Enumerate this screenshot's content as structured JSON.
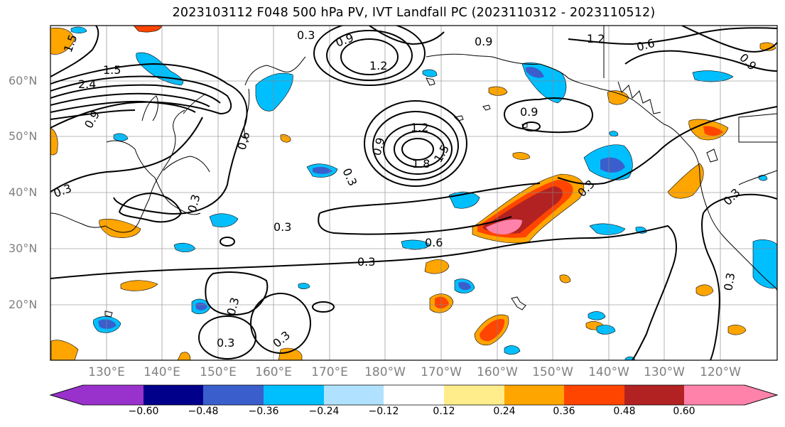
{
  "title": "2023103112 F048 500 hPa PV, IVT Landfall PC (2023110312 - 2023110512)",
  "lat_labels": [
    "60°N",
    "50°N",
    "40°N",
    "30°N",
    "20°N"
  ],
  "lon_labels": [
    "130°E",
    "140°E",
    "150°E",
    "160°E",
    "170°E",
    "180°W",
    "170°W",
    "160°W",
    "150°W",
    "140°W",
    "130°W",
    "120°W"
  ],
  "contour_labels": [
    "0.3",
    "0.6",
    "0.9",
    "1.2",
    "1.5",
    "1.8",
    "2.4"
  ],
  "colorbar": {
    "ticks": [
      "−0.60",
      "−0.48",
      "−0.36",
      "−0.24",
      "−0.12",
      "0.12",
      "0.24",
      "0.36",
      "0.48",
      "0.60"
    ],
    "colors": [
      "#9932cc",
      "#00008b",
      "#3a5fcd",
      "#00bfff",
      "#b0e2ff",
      "#ffffff",
      "#ffec8b",
      "#ffa500",
      "#ff4500",
      "#b22222",
      "#ff82ab"
    ]
  }
}
